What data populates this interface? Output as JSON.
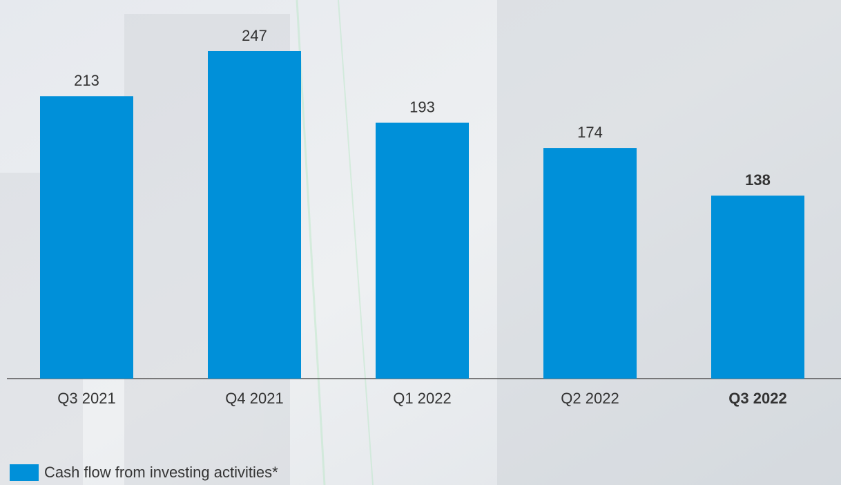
{
  "chart_data": {
    "type": "bar",
    "categories": [
      "Q3 2021",
      "Q4 2021",
      "Q1 2022",
      "Q2 2022",
      "Q3 2022"
    ],
    "series": [
      {
        "name": "Cash flow from investing activities*",
        "color": "#0090d9",
        "values": [
          213,
          247,
          193,
          174,
          138
        ]
      }
    ],
    "highlight_index": 4
  }
}
